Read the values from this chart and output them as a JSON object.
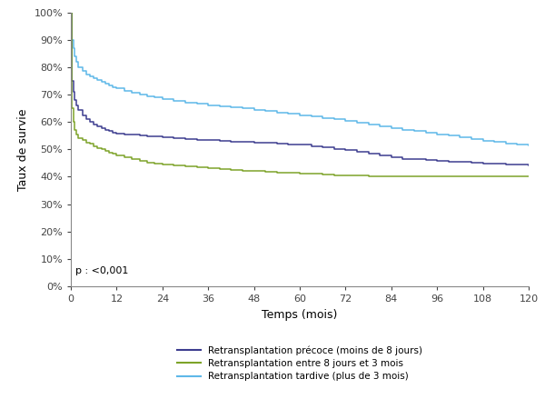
{
  "title": "",
  "xlabel": "Temps (mois)",
  "ylabel": "Taux de survie",
  "xlim": [
    0,
    120
  ],
  "ylim": [
    0,
    1.0
  ],
  "xticks": [
    0,
    12,
    24,
    36,
    48,
    60,
    72,
    84,
    96,
    108,
    120
  ],
  "yticks": [
    0.0,
    0.1,
    0.2,
    0.3,
    0.4,
    0.5,
    0.6,
    0.7,
    0.8,
    0.9,
    1.0
  ],
  "pvalue_text": "p : <0,001",
  "legend_labels": [
    "Retransplantation précoce (moins de 8 jours)",
    "Retransplantation entre 8 jours et 3 mois",
    "Retransplantation tardive (plus de 3 mois)"
  ],
  "colors": {
    "precoce": "#3d3d8f",
    "entre": "#7da329",
    "tardive": "#5eb8e8"
  },
  "curve_precoce_x": [
    0,
    0.3,
    0.6,
    1,
    1.5,
    2,
    3,
    4,
    5,
    6,
    7,
    8,
    9,
    10,
    11,
    12,
    14,
    16,
    18,
    20,
    22,
    24,
    27,
    30,
    33,
    36,
    39,
    42,
    45,
    48,
    51,
    54,
    57,
    60,
    63,
    66,
    69,
    72,
    75,
    78,
    81,
    84,
    87,
    90,
    93,
    96,
    99,
    102,
    105,
    108,
    111,
    114,
    117,
    120
  ],
  "curve_precoce_y": [
    1.0,
    0.75,
    0.71,
    0.68,
    0.66,
    0.645,
    0.625,
    0.61,
    0.6,
    0.59,
    0.585,
    0.578,
    0.572,
    0.567,
    0.562,
    0.558,
    0.555,
    0.553,
    0.55,
    0.548,
    0.546,
    0.544,
    0.54,
    0.537,
    0.535,
    0.533,
    0.531,
    0.529,
    0.527,
    0.525,
    0.523,
    0.521,
    0.519,
    0.517,
    0.512,
    0.507,
    0.502,
    0.497,
    0.49,
    0.483,
    0.476,
    0.47,
    0.466,
    0.463,
    0.46,
    0.457,
    0.455,
    0.453,
    0.451,
    0.449,
    0.447,
    0.445,
    0.443,
    0.441
  ],
  "curve_entre_x": [
    0,
    0.3,
    0.6,
    1,
    1.5,
    2,
    3,
    4,
    5,
    6,
    7,
    8,
    9,
    10,
    11,
    12,
    14,
    16,
    18,
    20,
    22,
    24,
    27,
    30,
    33,
    36,
    39,
    42,
    45,
    48,
    51,
    54,
    57,
    60,
    63,
    66,
    69,
    72,
    75,
    78,
    81,
    84,
    87,
    90,
    93,
    96,
    99,
    102,
    105,
    108,
    111,
    114,
    117,
    120
  ],
  "curve_entre_y": [
    1.0,
    0.65,
    0.6,
    0.57,
    0.555,
    0.54,
    0.535,
    0.525,
    0.52,
    0.51,
    0.505,
    0.5,
    0.494,
    0.489,
    0.484,
    0.479,
    0.472,
    0.465,
    0.458,
    0.452,
    0.448,
    0.445,
    0.442,
    0.438,
    0.435,
    0.432,
    0.428,
    0.425,
    0.422,
    0.42,
    0.418,
    0.416,
    0.414,
    0.412,
    0.41,
    0.408,
    0.406,
    0.404,
    0.403,
    0.402,
    0.401,
    0.4,
    0.4,
    0.4,
    0.4,
    0.4,
    0.4,
    0.4,
    0.4,
    0.4,
    0.4,
    0.4,
    0.4,
    0.4
  ],
  "curve_tardive_x": [
    0,
    0.3,
    0.6,
    1,
    1.5,
    2,
    3,
    4,
    5,
    6,
    7,
    8,
    9,
    10,
    11,
    12,
    14,
    16,
    18,
    20,
    22,
    24,
    27,
    30,
    33,
    36,
    39,
    42,
    45,
    48,
    51,
    54,
    57,
    60,
    63,
    66,
    69,
    72,
    75,
    78,
    81,
    84,
    87,
    90,
    93,
    96,
    99,
    102,
    105,
    108,
    111,
    114,
    117,
    120
  ],
  "curve_tardive_y": [
    1.0,
    0.9,
    0.87,
    0.84,
    0.82,
    0.8,
    0.785,
    0.774,
    0.766,
    0.758,
    0.752,
    0.746,
    0.74,
    0.734,
    0.728,
    0.722,
    0.714,
    0.707,
    0.7,
    0.694,
    0.689,
    0.684,
    0.677,
    0.671,
    0.666,
    0.661,
    0.657,
    0.653,
    0.649,
    0.645,
    0.64,
    0.635,
    0.63,
    0.624,
    0.619,
    0.614,
    0.609,
    0.603,
    0.596,
    0.59,
    0.584,
    0.578,
    0.572,
    0.566,
    0.56,
    0.555,
    0.549,
    0.543,
    0.537,
    0.531,
    0.526,
    0.521,
    0.517,
    0.513
  ]
}
